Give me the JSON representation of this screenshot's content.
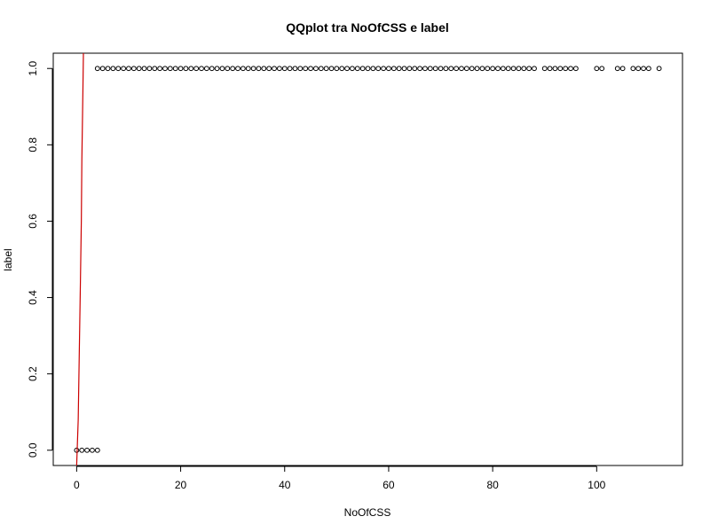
{
  "chart_data": {
    "type": "scatter",
    "title": "QQplot tra NoOfCSS e label",
    "xlabel": "NoOfCSS",
    "ylabel": "label",
    "xlim": [
      -4.5,
      116.5
    ],
    "ylim": [
      -0.04,
      1.04
    ],
    "xticks": [
      0,
      20,
      40,
      60,
      80,
      100
    ],
    "yticks": [
      0.0,
      0.2,
      0.4,
      0.6,
      0.8,
      1.0
    ],
    "xtick_labels": [
      "0",
      "20",
      "40",
      "60",
      "80",
      "100"
    ],
    "ytick_labels": [
      "0.0",
      "0.2",
      "0.4",
      "0.6",
      "0.8",
      "1.0"
    ],
    "grid": false,
    "legend": "none",
    "marker": "open-circle",
    "points_color": "#000000",
    "reference_line_color": "#cc0000",
    "points": [
      {
        "x": 0,
        "y": 0
      },
      {
        "x": 1,
        "y": 0
      },
      {
        "x": 2,
        "y": 0
      },
      {
        "x": 3,
        "y": 0
      },
      {
        "x": 4,
        "y": 0
      },
      {
        "x": 4,
        "y": 1
      },
      {
        "x": 5,
        "y": 1
      },
      {
        "x": 6,
        "y": 1
      },
      {
        "x": 7,
        "y": 1
      },
      {
        "x": 8,
        "y": 1
      },
      {
        "x": 9,
        "y": 1
      },
      {
        "x": 10,
        "y": 1
      },
      {
        "x": 11,
        "y": 1
      },
      {
        "x": 12,
        "y": 1
      },
      {
        "x": 13,
        "y": 1
      },
      {
        "x": 14,
        "y": 1
      },
      {
        "x": 15,
        "y": 1
      },
      {
        "x": 16,
        "y": 1
      },
      {
        "x": 17,
        "y": 1
      },
      {
        "x": 18,
        "y": 1
      },
      {
        "x": 19,
        "y": 1
      },
      {
        "x": 20,
        "y": 1
      },
      {
        "x": 21,
        "y": 1
      },
      {
        "x": 22,
        "y": 1
      },
      {
        "x": 23,
        "y": 1
      },
      {
        "x": 24,
        "y": 1
      },
      {
        "x": 25,
        "y": 1
      },
      {
        "x": 26,
        "y": 1
      },
      {
        "x": 27,
        "y": 1
      },
      {
        "x": 28,
        "y": 1
      },
      {
        "x": 29,
        "y": 1
      },
      {
        "x": 30,
        "y": 1
      },
      {
        "x": 31,
        "y": 1
      },
      {
        "x": 32,
        "y": 1
      },
      {
        "x": 33,
        "y": 1
      },
      {
        "x": 34,
        "y": 1
      },
      {
        "x": 35,
        "y": 1
      },
      {
        "x": 36,
        "y": 1
      },
      {
        "x": 37,
        "y": 1
      },
      {
        "x": 38,
        "y": 1
      },
      {
        "x": 39,
        "y": 1
      },
      {
        "x": 40,
        "y": 1
      },
      {
        "x": 41,
        "y": 1
      },
      {
        "x": 42,
        "y": 1
      },
      {
        "x": 43,
        "y": 1
      },
      {
        "x": 44,
        "y": 1
      },
      {
        "x": 45,
        "y": 1
      },
      {
        "x": 46,
        "y": 1
      },
      {
        "x": 47,
        "y": 1
      },
      {
        "x": 48,
        "y": 1
      },
      {
        "x": 49,
        "y": 1
      },
      {
        "x": 50,
        "y": 1
      },
      {
        "x": 51,
        "y": 1
      },
      {
        "x": 52,
        "y": 1
      },
      {
        "x": 53,
        "y": 1
      },
      {
        "x": 54,
        "y": 1
      },
      {
        "x": 55,
        "y": 1
      },
      {
        "x": 56,
        "y": 1
      },
      {
        "x": 57,
        "y": 1
      },
      {
        "x": 58,
        "y": 1
      },
      {
        "x": 59,
        "y": 1
      },
      {
        "x": 60,
        "y": 1
      },
      {
        "x": 61,
        "y": 1
      },
      {
        "x": 62,
        "y": 1
      },
      {
        "x": 63,
        "y": 1
      },
      {
        "x": 64,
        "y": 1
      },
      {
        "x": 65,
        "y": 1
      },
      {
        "x": 66,
        "y": 1
      },
      {
        "x": 67,
        "y": 1
      },
      {
        "x": 68,
        "y": 1
      },
      {
        "x": 69,
        "y": 1
      },
      {
        "x": 70,
        "y": 1
      },
      {
        "x": 71,
        "y": 1
      },
      {
        "x": 72,
        "y": 1
      },
      {
        "x": 73,
        "y": 1
      },
      {
        "x": 74,
        "y": 1
      },
      {
        "x": 75,
        "y": 1
      },
      {
        "x": 76,
        "y": 1
      },
      {
        "x": 77,
        "y": 1
      },
      {
        "x": 78,
        "y": 1
      },
      {
        "x": 79,
        "y": 1
      },
      {
        "x": 80,
        "y": 1
      },
      {
        "x": 81,
        "y": 1
      },
      {
        "x": 82,
        "y": 1
      },
      {
        "x": 83,
        "y": 1
      },
      {
        "x": 84,
        "y": 1
      },
      {
        "x": 85,
        "y": 1
      },
      {
        "x": 86,
        "y": 1
      },
      {
        "x": 87,
        "y": 1
      },
      {
        "x": 88,
        "y": 1
      },
      {
        "x": 90,
        "y": 1
      },
      {
        "x": 91,
        "y": 1
      },
      {
        "x": 92,
        "y": 1
      },
      {
        "x": 93,
        "y": 1
      },
      {
        "x": 94,
        "y": 1
      },
      {
        "x": 95,
        "y": 1
      },
      {
        "x": 96,
        "y": 1
      },
      {
        "x": 100,
        "y": 1
      },
      {
        "x": 101,
        "y": 1
      },
      {
        "x": 104,
        "y": 1
      },
      {
        "x": 105,
        "y": 1
      },
      {
        "x": 107,
        "y": 1
      },
      {
        "x": 108,
        "y": 1
      },
      {
        "x": 109,
        "y": 1
      },
      {
        "x": 110,
        "y": 1
      },
      {
        "x": 112,
        "y": 1
      }
    ],
    "reference_line": [
      {
        "x": 0,
        "y": -0.04
      },
      {
        "x": 0.3,
        "y": 0.08
      },
      {
        "x": 0.5,
        "y": 0.25
      },
      {
        "x": 0.7,
        "y": 0.42
      },
      {
        "x": 0.9,
        "y": 0.6
      },
      {
        "x": 1.0,
        "y": 0.76
      },
      {
        "x": 1.2,
        "y": 0.94
      },
      {
        "x": 1.3,
        "y": 1.04
      }
    ]
  }
}
